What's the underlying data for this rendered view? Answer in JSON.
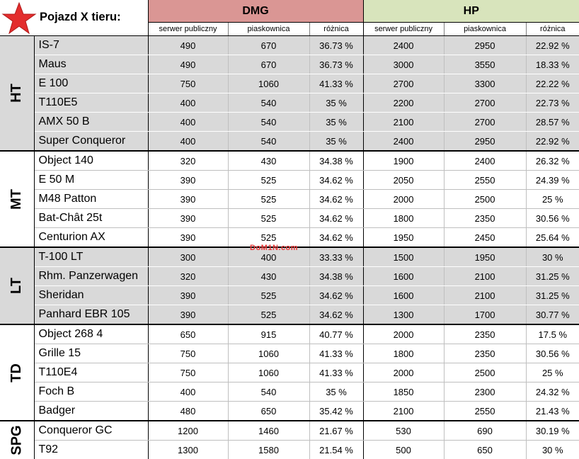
{
  "header": {
    "title": "Pojazd X tieru:",
    "groups": [
      {
        "label": "DMG",
        "color": "#da9694"
      },
      {
        "label": "HP",
        "color": "#d8e4bc"
      }
    ],
    "subheaders": [
      "serwer publiczny",
      "piaskownica",
      "różnica",
      "serwer publiczny",
      "piaskownica",
      "różnica"
    ]
  },
  "watermark": "DoM1N.com",
  "colors": {
    "gray_band": "#d9d9d9",
    "dmg_header": "#da9694",
    "hp_header": "#d8e4bc",
    "star": "#e32d2d"
  },
  "classes": [
    {
      "label": "HT",
      "shaded": true,
      "rows": [
        [
          "IS-7",
          "490",
          "670",
          "36.73 %",
          "2400",
          "2950",
          "22.92 %"
        ],
        [
          "Maus",
          "490",
          "670",
          "36.73 %",
          "3000",
          "3550",
          "18.33 %"
        ],
        [
          "E 100",
          "750",
          "1060",
          "41.33 %",
          "2700",
          "3300",
          "22.22 %"
        ],
        [
          "T110E5",
          "400",
          "540",
          "35 %",
          "2200",
          "2700",
          "22.73 %"
        ],
        [
          "AMX 50 B",
          "400",
          "540",
          "35 %",
          "2100",
          "2700",
          "28.57 %"
        ],
        [
          "Super Conqueror",
          "400",
          "540",
          "35 %",
          "2400",
          "2950",
          "22.92 %"
        ]
      ]
    },
    {
      "label": "MT",
      "shaded": false,
      "rows": [
        [
          "Object 140",
          "320",
          "430",
          "34.38 %",
          "1900",
          "2400",
          "26.32 %"
        ],
        [
          "E 50 M",
          "390",
          "525",
          "34.62 %",
          "2050",
          "2550",
          "24.39 %"
        ],
        [
          "M48 Patton",
          "390",
          "525",
          "34.62 %",
          "2000",
          "2500",
          "25 %"
        ],
        [
          "Bat-Chât 25t",
          "390",
          "525",
          "34.62 %",
          "1800",
          "2350",
          "30.56 %"
        ],
        [
          "Centurion AX",
          "390",
          "525",
          "34.62 %",
          "1950",
          "2450",
          "25.64 %"
        ]
      ]
    },
    {
      "label": "LT",
      "shaded": true,
      "rows": [
        [
          "T-100 LT",
          "300",
          "400",
          "33.33 %",
          "1500",
          "1950",
          "30 %"
        ],
        [
          "Rhm. Panzerwagen",
          "320",
          "430",
          "34.38 %",
          "1600",
          "2100",
          "31.25 %"
        ],
        [
          "Sheridan",
          "390",
          "525",
          "34.62 %",
          "1600",
          "2100",
          "31.25 %"
        ],
        [
          "Panhard EBR 105",
          "390",
          "525",
          "34.62 %",
          "1300",
          "1700",
          "30.77 %"
        ]
      ]
    },
    {
      "label": "TD",
      "shaded": false,
      "rows": [
        [
          "Object 268 4",
          "650",
          "915",
          "40.77 %",
          "2000",
          "2350",
          "17.5 %"
        ],
        [
          "Grille 15",
          "750",
          "1060",
          "41.33 %",
          "1800",
          "2350",
          "30.56 %"
        ],
        [
          "T110E4",
          "750",
          "1060",
          "41.33 %",
          "2000",
          "2500",
          "25 %"
        ],
        [
          "Foch B",
          "400",
          "540",
          "35 %",
          "1850",
          "2300",
          "24.32 %"
        ],
        [
          "Badger",
          "480",
          "650",
          "35.42 %",
          "2100",
          "2550",
          "21.43 %"
        ]
      ]
    },
    {
      "label": "SPG",
      "shaded": false,
      "rows": [
        [
          "Conqueror GC",
          "1200",
          "1460",
          "21.67 %",
          "530",
          "690",
          "30.19 %"
        ],
        [
          "T92",
          "1300",
          "1580",
          "21.54 %",
          "500",
          "650",
          "30 %"
        ]
      ]
    }
  ]
}
